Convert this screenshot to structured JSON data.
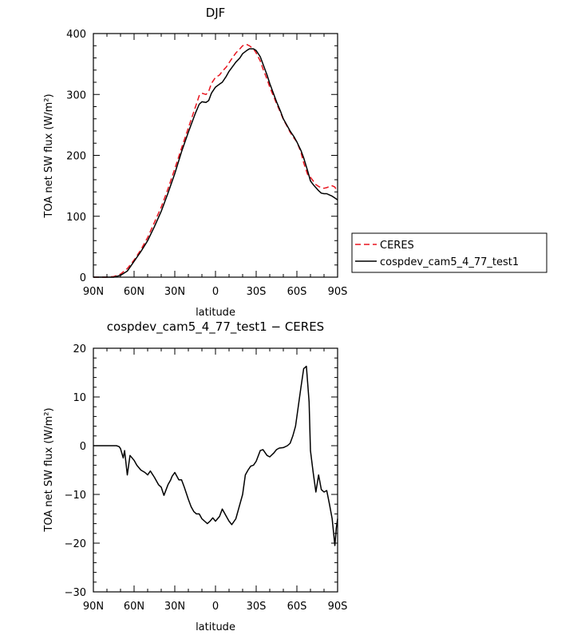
{
  "chart_data": [
    {
      "type": "line",
      "title": "DJF",
      "xlabel": "latitude",
      "ylabel": "TOA net SW flux (W/m²)",
      "xlim": [
        -90,
        90
      ],
      "ylim": [
        0,
        400
      ],
      "x_ticks": [
        -90,
        -60,
        -30,
        0,
        30,
        60,
        90
      ],
      "x_tick_labels": [
        "90N",
        "60N",
        "30N",
        "0",
        "30S",
        "60S",
        "90S"
      ],
      "y_ticks": [
        0,
        100,
        200,
        300,
        400
      ],
      "y_tick_labels": [
        "0",
        "100",
        "200",
        "300",
        "400"
      ],
      "grid": false,
      "legend_position": "right",
      "series": [
        {
          "name": "CERES",
          "color": "#e8141e",
          "dash": "dashed",
          "x": [
            -90,
            -85,
            -80,
            -75,
            -70,
            -65,
            -60,
            -55,
            -50,
            -45,
            -40,
            -35,
            -30,
            -25,
            -20,
            -15,
            -12,
            -10,
            -7,
            -5,
            -3,
            0,
            3,
            5,
            8,
            10,
            13,
            15,
            18,
            20,
            23,
            25,
            28,
            30,
            33,
            35,
            38,
            40,
            43,
            45,
            48,
            50,
            53,
            55,
            58,
            60,
            63,
            65,
            68,
            70,
            72,
            74,
            76,
            78,
            80,
            82,
            84,
            86,
            88,
            90
          ],
          "y": [
            0,
            0,
            0,
            1,
            5,
            14,
            28,
            45,
            65,
            90,
            115,
            145,
            178,
            212,
            245,
            278,
            298,
            302,
            300,
            305,
            318,
            328,
            332,
            338,
            345,
            352,
            362,
            368,
            375,
            380,
            382,
            380,
            375,
            368,
            355,
            342,
            325,
            312,
            296,
            285,
            270,
            259,
            247,
            238,
            228,
            222,
            205,
            188,
            168,
            164,
            158,
            152,
            149,
            147,
            146,
            147,
            149,
            150,
            148,
            140
          ]
        },
        {
          "name": "cospdev_cam5_4_77_test1",
          "color": "#000000",
          "dash": "solid",
          "x": [
            -90,
            -85,
            -80,
            -75,
            -70,
            -65,
            -60,
            -55,
            -50,
            -45,
            -40,
            -35,
            -30,
            -25,
            -20,
            -15,
            -12,
            -10,
            -7,
            -5,
            -3,
            0,
            3,
            5,
            8,
            10,
            13,
            15,
            18,
            20,
            23,
            25,
            28,
            30,
            33,
            35,
            38,
            40,
            43,
            45,
            48,
            50,
            53,
            55,
            58,
            60,
            63,
            65,
            68,
            70,
            72,
            74,
            76,
            78,
            80,
            82,
            84,
            86,
            88,
            90
          ],
          "y": [
            0,
            0,
            0,
            0,
            3,
            10,
            26,
            42,
            60,
            83,
            108,
            138,
            170,
            206,
            238,
            268,
            284,
            288,
            287,
            290,
            302,
            312,
            317,
            320,
            330,
            338,
            347,
            353,
            360,
            367,
            372,
            375,
            375,
            372,
            362,
            350,
            332,
            318,
            300,
            288,
            272,
            260,
            248,
            240,
            230,
            222,
            208,
            196,
            174,
            158,
            152,
            147,
            142,
            138,
            137,
            137,
            135,
            133,
            130,
            127
          ]
        }
      ]
    },
    {
      "type": "line",
      "title": "cospdev_cam5_4_77_test1 − CERES",
      "xlabel": "latitude",
      "ylabel": "TOA net SW flux (W/m²)",
      "xlim": [
        -90,
        90
      ],
      "ylim": [
        -30,
        20
      ],
      "x_ticks": [
        -90,
        -60,
        -30,
        0,
        30,
        60,
        90
      ],
      "x_tick_labels": [
        "90N",
        "60N",
        "30N",
        "0",
        "30S",
        "60S",
        "90S"
      ],
      "y_ticks": [
        -30,
        -20,
        -10,
        0,
        10,
        20
      ],
      "y_tick_labels": [
        "−30",
        "−20",
        "−10",
        "0",
        "10",
        "20"
      ],
      "grid": false,
      "series": [
        {
          "color": "#000000",
          "dash": "solid",
          "x": [
            -90,
            -85,
            -80,
            -75,
            -73,
            -71,
            -70,
            -68,
            -67,
            -65,
            -63,
            -60,
            -58,
            -55,
            -52,
            -50,
            -48,
            -45,
            -42,
            -40,
            -38,
            -35,
            -33,
            -32,
            -30,
            -27,
            -25,
            -23,
            -20,
            -18,
            -16,
            -14,
            -12,
            -10,
            -8,
            -6,
            -4,
            -2,
            0,
            3,
            5,
            8,
            10,
            12,
            15,
            17,
            20,
            22,
            24,
            26,
            28,
            30,
            33,
            35,
            38,
            40,
            43,
            45,
            47,
            50,
            53,
            55,
            57,
            59,
            61,
            63,
            65,
            67,
            69,
            70,
            72,
            74,
            76,
            78,
            80,
            82,
            84,
            86,
            88,
            89,
            90
          ],
          "y": [
            0,
            0,
            0,
            0,
            0,
            -0.2,
            -0.6,
            -2.5,
            -1,
            -6,
            -2,
            -3,
            -4,
            -5,
            -5.5,
            -6,
            -5.2,
            -6.5,
            -8,
            -8.5,
            -10.2,
            -8,
            -7,
            -6.3,
            -5.5,
            -7,
            -7,
            -8.5,
            -11,
            -12.5,
            -13.5,
            -14,
            -14,
            -15,
            -15.5,
            -16,
            -15.5,
            -14.8,
            -15.5,
            -14.5,
            -13,
            -14.5,
            -15.5,
            -16.2,
            -15,
            -13,
            -10,
            -6,
            -5,
            -4.2,
            -4,
            -3.2,
            -1,
            -0.8,
            -2,
            -2.3,
            -1.5,
            -0.8,
            -0.5,
            -0.4,
            0,
            0.5,
            2,
            4,
            8,
            12,
            15.8,
            16.3,
            9,
            -1,
            -5.5,
            -9.5,
            -6,
            -9,
            -9.5,
            -9.2,
            -12,
            -15,
            -20.5,
            -17,
            -15
          ]
        }
      ]
    }
  ]
}
